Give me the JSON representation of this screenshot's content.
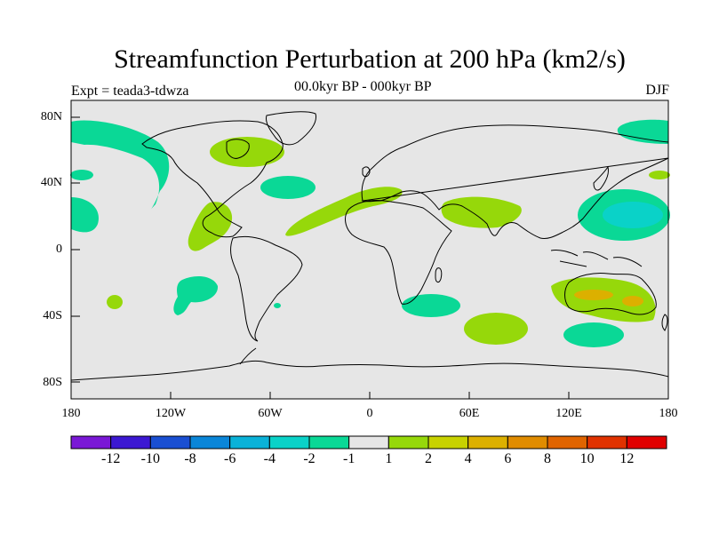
{
  "title": "Streamfunction Perturbation at 200 hPa (km2/s)",
  "experiment": "Expt = teada3-tdwza",
  "period": "00.0kyr BP - 000kyr BP",
  "season": "DJF",
  "lat_ticks": [
    "80N",
    "40N",
    "0",
    "40S",
    "80S"
  ],
  "lon_ticks": [
    "180",
    "120W",
    "60W",
    "0",
    "60E",
    "120E",
    "180"
  ],
  "colorbar": {
    "labels": [
      "-12",
      "-10",
      "-8",
      "-6",
      "-4",
      "-2",
      "-1",
      "1",
      "2",
      "4",
      "6",
      "8",
      "10",
      "12"
    ],
    "colors": [
      "#7a18d6",
      "#3c18d2",
      "#1a4fd2",
      "#0a86d8",
      "#0ab2d8",
      "#0ad2c8",
      "#0ad896",
      "#e6e6e6",
      "#96d80a",
      "#c8d200",
      "#dcb000",
      "#e08c00",
      "#e06400",
      "#e03200",
      "#e00000"
    ]
  },
  "colors": {
    "land_background": "#e6e6e6",
    "neg_1_to_2": "#0ad896",
    "neg_2_to_4": "#0ad2c8",
    "pos_1_to_2": "#96d80a",
    "pos_2_to_4": "#dcb000"
  },
  "chart_data": {
    "type": "map",
    "title": "Streamfunction Perturbation at 200 hPa (km2/s)",
    "projection": "cylindrical equidistant",
    "lon_range": [
      -180,
      180
    ],
    "lat_range": [
      -90,
      90
    ],
    "field": "streamfunction perturbation",
    "units": "km2/s",
    "contour_levels": [
      -12,
      -10,
      -8,
      -6,
      -4,
      -2,
      -1,
      1,
      2,
      4,
      6,
      8,
      10,
      12
    ],
    "anomalies": [
      {
        "region": "North Pacific / Bering",
        "lon": -150,
        "lat": 60,
        "band": "-2 to -1"
      },
      {
        "region": "Northeast Pacific arc",
        "lon": -140,
        "lat": 40,
        "band": "-2 to -1"
      },
      {
        "region": "Central Pacific",
        "lon": -175,
        "lat": 20,
        "band": "-2 to -1"
      },
      {
        "region": "Hudson Bay",
        "lon": -80,
        "lat": 58,
        "band": "1 to 2"
      },
      {
        "region": "North Atlantic",
        "lon": -50,
        "lat": 38,
        "band": "-2 to -1"
      },
      {
        "region": "Arctic / Svalbard",
        "lon": 165,
        "lat": 75,
        "band": "-2 to -1"
      },
      {
        "region": "Eastern Pacific / Central America",
        "lon": -95,
        "lat": 15,
        "band": "1 to 2"
      },
      {
        "region": "Atlantic-Saharan band",
        "lon": -10,
        "lat": 22,
        "band": "1 to 2"
      },
      {
        "region": "Arabia / India",
        "lon": 65,
        "lat": 22,
        "band": "1 to 2"
      },
      {
        "region": "Western Pacific",
        "lon": 150,
        "lat": 20,
        "band": "-4 to -2"
      },
      {
        "region": "South Pacific",
        "lon": -105,
        "lat": -27,
        "band": "-2 to -1"
      },
      {
        "region": "Southern Africa",
        "lon": 32,
        "lat": -33,
        "band": "-2 to -1"
      },
      {
        "region": "Southern Indian Ocean",
        "lon": 70,
        "lat": -48,
        "band": "1 to 2"
      },
      {
        "region": "Australia",
        "lon": 140,
        "lat": -27,
        "band": "2 to 4"
      },
      {
        "region": "Southern Ocean south of Australia",
        "lon": 125,
        "lat": -52,
        "band": "-2 to -1"
      }
    ]
  }
}
